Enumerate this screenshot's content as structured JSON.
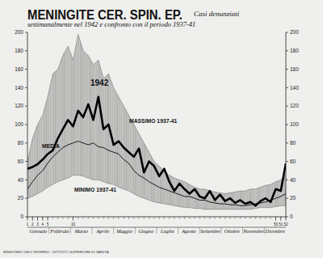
{
  "chart_data": {
    "type": "line",
    "title": "MENINGITE CER. SPIN. EP.",
    "subtitle": [
      "Casi denunziati",
      "settimanalmente nel 1942 e confronto con il periodo 1937-41"
    ],
    "footer": "MINISTERO DELL'INTERNO - ISTITUTO SUPERIORE DI SANITÀ",
    "month_labels": [
      "Gennaio",
      "Febbraio",
      "Marzo",
      "Aprile",
      "Maggio",
      "Giugno",
      "Luglio",
      "Agosto",
      "Settembre",
      "Ottobre",
      "Novembre",
      "Dicembre"
    ],
    "x": [
      1,
      2,
      3,
      4,
      5,
      6,
      7,
      8,
      9,
      10,
      11,
      12,
      13,
      14,
      15,
      16,
      17,
      18,
      19,
      20,
      21,
      22,
      23,
      24,
      25,
      26,
      27,
      28,
      29,
      30,
      31,
      32,
      33,
      34,
      35,
      36,
      37,
      38,
      39,
      40,
      41,
      42,
      43,
      44,
      45,
      46,
      47,
      48,
      49,
      50,
      51,
      52
    ],
    "xlim": [
      1,
      52
    ],
    "xticks": [
      1,
      2,
      3,
      4,
      5,
      10,
      50,
      51,
      52
    ],
    "ylim": [
      0,
      200
    ],
    "yticks": [
      0,
      20,
      40,
      60,
      80,
      100,
      120,
      140,
      160,
      180,
      200
    ],
    "grid": false,
    "series": [
      {
        "name": "MASSIMO 1937-41",
        "type": "range",
        "color": "#777777",
        "values": [
          60,
          85,
          100,
          110,
          130,
          155,
          160,
          175,
          185,
          170,
          198,
          180,
          175,
          165,
          170,
          150,
          155,
          140,
          130,
          120,
          110,
          100,
          90,
          80,
          70,
          60,
          55,
          50,
          45,
          42,
          40,
          38,
          35,
          32,
          30,
          30,
          28,
          27,
          26,
          25,
          26,
          27,
          28,
          28,
          30,
          30,
          32,
          34,
          35,
          38,
          40,
          45
        ]
      },
      {
        "name": "MINIMO 1937-41",
        "type": "range",
        "color": "#777777",
        "values": [
          20,
          22,
          25,
          28,
          32,
          35,
          38,
          40,
          42,
          45,
          45,
          44,
          42,
          40,
          40,
          38,
          36,
          35,
          32,
          30,
          28,
          25,
          22,
          20,
          18,
          16,
          15,
          14,
          13,
          12,
          11,
          10,
          10,
          9,
          9,
          8,
          8,
          8,
          8,
          8,
          8,
          8,
          8,
          8,
          8,
          9,
          10,
          10,
          10,
          11,
          12,
          12
        ]
      },
      {
        "name": "MEDIA",
        "type": "line",
        "color": "#1a1a1a",
        "line_style": "thin",
        "values": [
          30,
          38,
          45,
          50,
          58,
          65,
          70,
          75,
          78,
          80,
          82,
          80,
          78,
          80,
          76,
          75,
          72,
          70,
          68,
          62,
          58,
          50,
          45,
          42,
          38,
          35,
          32,
          30,
          28,
          26,
          24,
          22,
          22,
          20,
          18,
          18,
          16,
          15,
          14,
          14,
          13,
          13,
          12,
          12,
          13,
          14,
          15,
          16,
          18,
          20,
          22,
          25
        ]
      },
      {
        "name": "1942",
        "type": "line",
        "color": "#000000",
        "line_style": "thick",
        "values": [
          52,
          54,
          57,
          62,
          68,
          72,
          85,
          95,
          105,
          98,
          115,
          108,
          122,
          105,
          130,
          95,
          100,
          78,
          82,
          75,
          70,
          65,
          74,
          48,
          60,
          55,
          44,
          52,
          38,
          28,
          36,
          30,
          25,
          30,
          22,
          20,
          28,
          18,
          24,
          17,
          20,
          15,
          18,
          14,
          16,
          12,
          17,
          20,
          16,
          30,
          28,
          58
        ]
      }
    ]
  }
}
